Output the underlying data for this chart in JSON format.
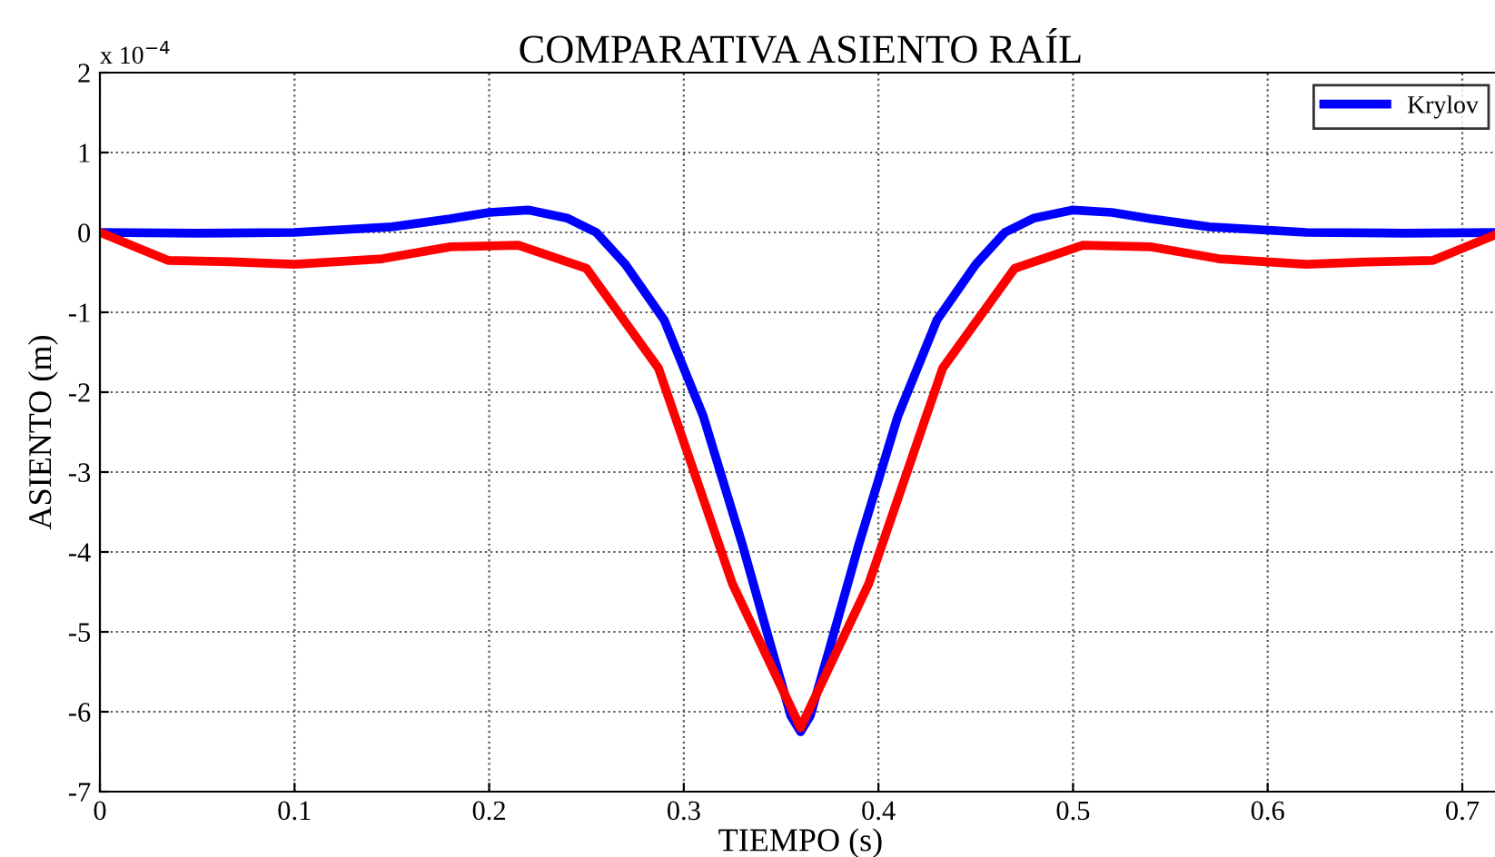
{
  "chart_data": {
    "type": "line",
    "title": "COMPARATIVA ASIENTO RAÍL",
    "xlabel": "TIEMPO (s)",
    "ylabel": "ASIENTO (m)",
    "annotations": [
      "x 10$^{−4}$"
    ],
    "xlim": [
      0,
      0.72
    ],
    "xticks": [
      0,
      0.1,
      0.2,
      0.3,
      0.4,
      0.5,
      0.6,
      0.7
    ],
    "ylim": [
      -7,
      2
    ],
    "yticks": [
      -7,
      -6,
      -5,
      -4,
      -3,
      -2,
      -1,
      0,
      1,
      2
    ],
    "grid": true,
    "legend": "top right",
    "line_style": "solid",
    "series": [
      {
        "name": "Krylov",
        "color": "#0000ff",
        "x": [
          0,
          0.05,
          0.1,
          0.15,
          0.18,
          0.2,
          0.22,
          0.24,
          0.255,
          0.27,
          0.29,
          0.31,
          0.33,
          0.345,
          0.355,
          0.36,
          0.365,
          0.375,
          0.39,
          0.41,
          0.43,
          0.45,
          0.465,
          0.48,
          0.5,
          0.52,
          0.54,
          0.57,
          0.62,
          0.67,
          0.72
        ],
        "values": [
          0,
          -0.01,
          0,
          0.07,
          0.17,
          0.25,
          0.28,
          0.18,
          0,
          -0.4,
          -1.1,
          -2.3,
          -3.9,
          -5.2,
          -6.05,
          -6.25,
          -6.05,
          -5.2,
          -3.9,
          -2.3,
          -1.1,
          -0.4,
          0,
          0.18,
          0.28,
          0.25,
          0.17,
          0.07,
          0,
          -0.01,
          0
        ]
      },
      {
        "color": "#ff0000",
        "x": [
          0,
          0.035,
          0.07,
          0.1,
          0.145,
          0.18,
          0.215,
          0.25,
          0.287,
          0.325,
          0.36,
          0.395,
          0.433,
          0.47,
          0.505,
          0.54,
          0.575,
          0.62,
          0.65,
          0.685,
          0.72
        ],
        "values": [
          0,
          -0.35,
          -0.37,
          -0.4,
          -0.33,
          -0.18,
          -0.16,
          -0.45,
          -1.7,
          -4.4,
          -6.2,
          -4.4,
          -1.7,
          -0.45,
          -0.16,
          -0.18,
          -0.33,
          -0.4,
          -0.37,
          -0.35,
          0
        ]
      }
    ]
  }
}
